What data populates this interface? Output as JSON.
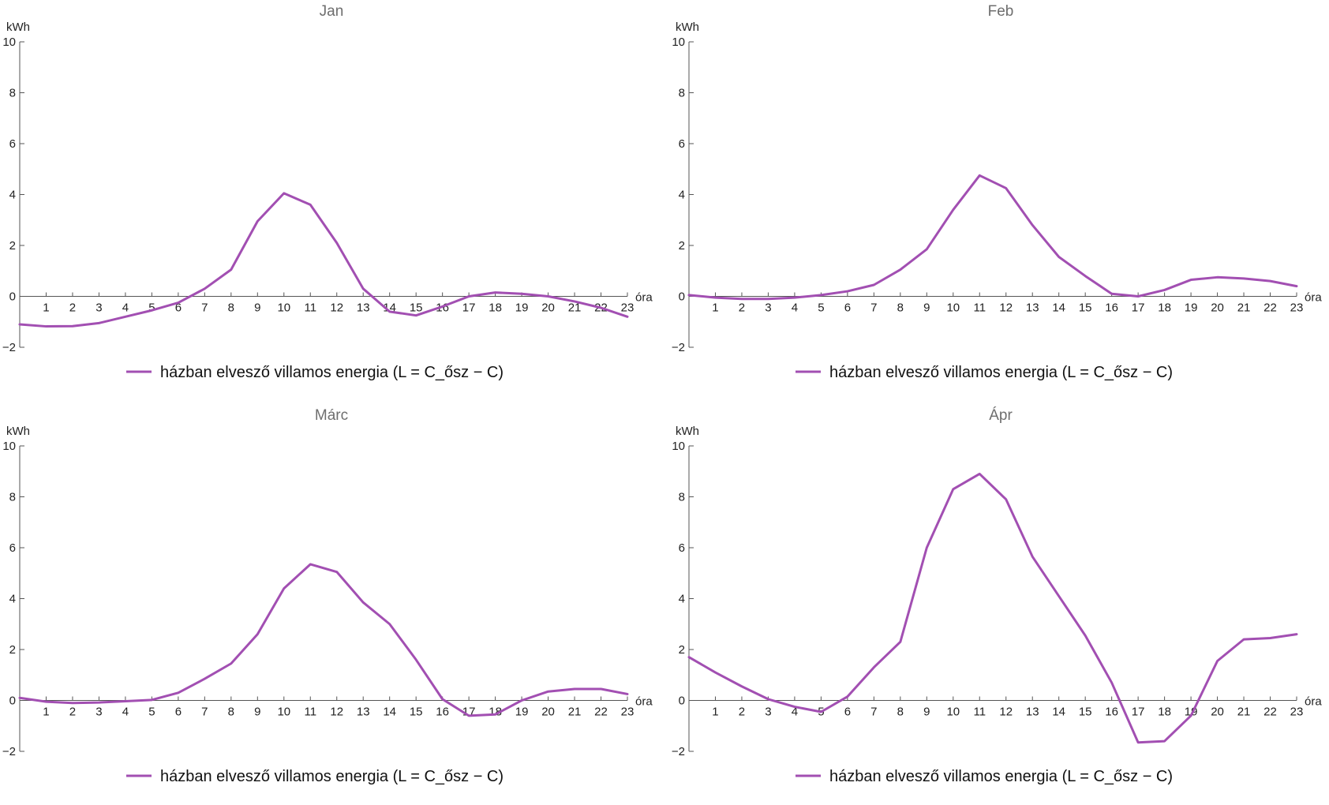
{
  "colors": {
    "series": "#a24fb2",
    "axis": "#555555",
    "title": "#6e6e6e"
  },
  "chart_data": [
    {
      "type": "line",
      "title": "Jan",
      "xlabel": "óra",
      "ylabel": "kWh",
      "xlim": [
        0,
        23
      ],
      "ylim": [
        -2,
        10
      ],
      "x_ticks": [
        1,
        2,
        3,
        4,
        5,
        6,
        7,
        8,
        9,
        10,
        11,
        12,
        13,
        14,
        15,
        16,
        17,
        18,
        19,
        20,
        21,
        22,
        23
      ],
      "y_ticks": [
        -2,
        0,
        2,
        4,
        6,
        8,
        10
      ],
      "y_tick_labels": [
        "−2",
        "0",
        "2",
        "4",
        "6",
        "8",
        "10"
      ],
      "legend": "bottom-center",
      "series": [
        {
          "name": "házban elvesző villamos energia (L = C_ősz − C)",
          "x": [
            0,
            1,
            2,
            3,
            4,
            5,
            6,
            7,
            8,
            9,
            10,
            11,
            12,
            13,
            14,
            15,
            16,
            17,
            18,
            19,
            20,
            21,
            22,
            23
          ],
          "values": [
            -1.1,
            -1.18,
            -1.17,
            -1.05,
            -0.8,
            -0.55,
            -0.25,
            0.3,
            1.05,
            2.95,
            4.05,
            3.6,
            2.1,
            0.3,
            -0.6,
            -0.75,
            -0.4,
            0.0,
            0.15,
            0.1,
            0.0,
            -0.2,
            -0.45,
            -0.8
          ]
        }
      ]
    },
    {
      "type": "line",
      "title": "Feb",
      "xlabel": "óra",
      "ylabel": "kWh",
      "xlim": [
        0,
        23
      ],
      "ylim": [
        -2,
        10
      ],
      "x_ticks": [
        1,
        2,
        3,
        4,
        5,
        6,
        7,
        8,
        9,
        10,
        11,
        12,
        13,
        14,
        15,
        16,
        17,
        18,
        19,
        20,
        21,
        22,
        23
      ],
      "y_ticks": [
        -2,
        0,
        2,
        4,
        6,
        8,
        10
      ],
      "y_tick_labels": [
        "−2",
        "0",
        "2",
        "4",
        "6",
        "8",
        "10"
      ],
      "legend": "bottom-center",
      "series": [
        {
          "name": "házban elvesző villamos energia (L = C_ősz − C)",
          "x": [
            0,
            1,
            2,
            3,
            4,
            5,
            6,
            7,
            8,
            9,
            10,
            11,
            12,
            13,
            14,
            15,
            16,
            17,
            18,
            19,
            20,
            21,
            22,
            23
          ],
          "values": [
            0.05,
            -0.05,
            -0.1,
            -0.1,
            -0.05,
            0.05,
            0.2,
            0.45,
            1.05,
            1.85,
            3.4,
            4.75,
            4.25,
            2.8,
            1.55,
            0.8,
            0.1,
            0.0,
            0.25,
            0.65,
            0.75,
            0.7,
            0.6,
            0.4
          ]
        }
      ]
    },
    {
      "type": "line",
      "title": "Márc",
      "xlabel": "óra",
      "ylabel": "kWh",
      "xlim": [
        0,
        23
      ],
      "ylim": [
        -2,
        10
      ],
      "x_ticks": [
        1,
        2,
        3,
        4,
        5,
        6,
        7,
        8,
        9,
        10,
        11,
        12,
        13,
        14,
        15,
        16,
        17,
        18,
        19,
        20,
        21,
        22,
        23
      ],
      "y_ticks": [
        -2,
        0,
        2,
        4,
        6,
        8,
        10
      ],
      "y_tick_labels": [
        "−2",
        "0",
        "2",
        "4",
        "6",
        "8",
        "10"
      ],
      "legend": "bottom-center",
      "series": [
        {
          "name": "házban elvesző villamos energia (L = C_ősz − C)",
          "x": [
            0,
            1,
            2,
            3,
            4,
            5,
            6,
            7,
            8,
            9,
            10,
            11,
            12,
            13,
            14,
            15,
            16,
            17,
            18,
            19,
            20,
            21,
            22,
            23
          ],
          "values": [
            0.1,
            -0.05,
            -0.1,
            -0.08,
            -0.03,
            0.02,
            0.3,
            0.85,
            1.45,
            2.6,
            4.4,
            5.35,
            5.05,
            3.85,
            3.0,
            1.6,
            0.05,
            -0.6,
            -0.55,
            0.0,
            0.35,
            0.45,
            0.45,
            0.25
          ]
        }
      ]
    },
    {
      "type": "line",
      "title": "Ápr",
      "xlabel": "óra",
      "ylabel": "kWh",
      "xlim": [
        0,
        23
      ],
      "ylim": [
        -2,
        10
      ],
      "x_ticks": [
        1,
        2,
        3,
        4,
        5,
        6,
        7,
        8,
        9,
        10,
        11,
        12,
        13,
        14,
        15,
        16,
        17,
        18,
        19,
        20,
        21,
        22,
        23
      ],
      "y_ticks": [
        -2,
        0,
        2,
        4,
        6,
        8,
        10
      ],
      "y_tick_labels": [
        "−2",
        "0",
        "2",
        "4",
        "6",
        "8",
        "10"
      ],
      "legend": "bottom-center",
      "series": [
        {
          "name": "házban elvesző villamos energia (L = C_ősz − C)",
          "x": [
            0,
            1,
            2,
            3,
            4,
            5,
            6,
            7,
            8,
            9,
            10,
            11,
            12,
            13,
            14,
            15,
            16,
            17,
            18,
            19,
            20,
            21,
            22,
            23
          ],
          "values": [
            1.7,
            1.1,
            0.55,
            0.05,
            -0.25,
            -0.45,
            0.15,
            1.3,
            2.3,
            6.0,
            8.3,
            8.9,
            7.9,
            5.65,
            4.1,
            2.55,
            0.7,
            -1.65,
            -1.6,
            -0.6,
            1.55,
            2.4,
            2.45,
            2.6
          ]
        }
      ]
    }
  ]
}
